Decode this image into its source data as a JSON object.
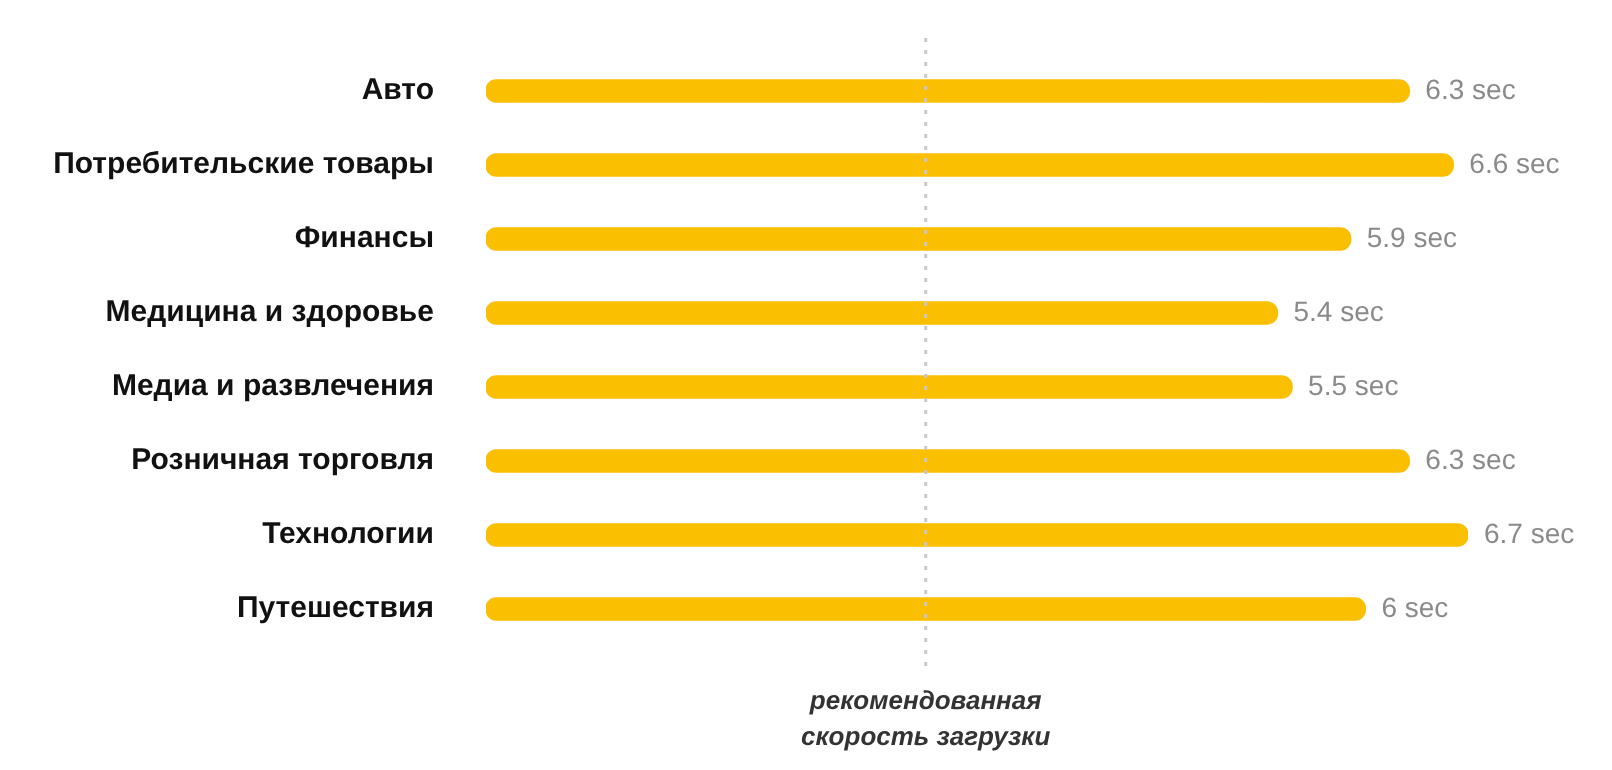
{
  "chart_data": {
    "type": "bar",
    "orientation": "horizontal",
    "categories": [
      "Авто",
      "Потребительские товары",
      "Финансы",
      "Медицина и здоровье",
      "Медиа и развлечения",
      "Розничная торговля",
      "Технологии",
      "Путешествия"
    ],
    "series": [
      {
        "color": "#f9bf00",
        "values": [
          6.3,
          6.6,
          5.9,
          5.4,
          5.5,
          6.3,
          6.7,
          6
        ],
        "value_labels": [
          "6.3 sec",
          "6.6 sec",
          "5.9 sec",
          "5.4 sec",
          "5.5 sec",
          "6.3 sec",
          "6.7 sec",
          "6 sec"
        ]
      }
    ],
    "ref_lines": [
      {
        "axis": "x",
        "value": 3,
        "label": "рекомендованная скорость загрузки",
        "color": "#c8c8c8",
        "line_style": "dotted"
      }
    ],
    "grid": false,
    "legend": false
  }
}
